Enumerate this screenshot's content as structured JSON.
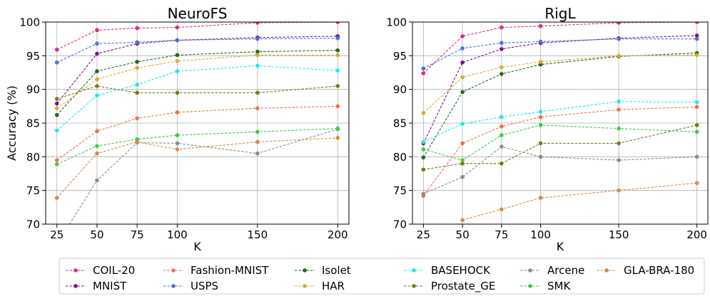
{
  "legend": {
    "placement": "bottom",
    "entries": [
      {
        "name": "COIL-20",
        "color": "#e6258c"
      },
      {
        "name": "MNIST",
        "color": "#7f0f8c"
      },
      {
        "name": "Fashion-MNIST",
        "color": "#f2704d"
      },
      {
        "name": "USPS",
        "color": "#4c6ee0"
      },
      {
        "name": "Isolet",
        "color": "#1e6b1e"
      },
      {
        "name": "HAR",
        "color": "#d9ad2b"
      },
      {
        "name": "BASEHOCK",
        "color": "#1ee8f0"
      },
      {
        "name": "Prostate_GE",
        "color": "#7a7a14"
      },
      {
        "name": "Arcene",
        "color": "#8c8c8c"
      },
      {
        "name": "SMK",
        "color": "#3ccc46"
      },
      {
        "name": "GLA-BRA-180",
        "color": "#d88a48"
      }
    ]
  },
  "chart_data": [
    {
      "type": "line",
      "title": "NeuroFS",
      "xlabel": "K",
      "ylabel": "Accuracy (%)",
      "x": [
        25,
        50,
        75,
        100,
        150,
        200
      ],
      "xlim": [
        18,
        207
      ],
      "ylim": [
        70,
        100
      ],
      "yticks": [
        70,
        75,
        80,
        85,
        90,
        95,
        100
      ],
      "grid": true,
      "series": [
        {
          "name": "COIL-20",
          "values": [
            95.9,
            98.8,
            99.1,
            99.2,
            99.9,
            100.0
          ]
        },
        {
          "name": "MNIST",
          "values": [
            87.9,
            95.3,
            96.8,
            97.3,
            97.7,
            97.9
          ]
        },
        {
          "name": "Fashion-MNIST",
          "values": [
            79.5,
            83.8,
            85.7,
            86.6,
            87.2,
            87.5
          ]
        },
        {
          "name": "USPS",
          "values": [
            94.0,
            96.8,
            97.0,
            97.3,
            97.5,
            97.6
          ]
        },
        {
          "name": "Isolet",
          "values": [
            86.2,
            92.7,
            94.1,
            95.1,
            95.6,
            95.8
          ]
        },
        {
          "name": "HAR",
          "values": [
            87.2,
            91.5,
            93.2,
            94.2,
            95.1,
            95.1
          ]
        },
        {
          "name": "BASEHOCK",
          "values": [
            83.9,
            89.1,
            90.7,
            92.7,
            93.5,
            92.8
          ]
        },
        {
          "name": "Prostate_GE",
          "values": [
            88.6,
            90.5,
            89.5,
            89.5,
            89.5,
            90.5
          ]
        },
        {
          "name": "Arcene",
          "values": [
            67.0,
            76.5,
            82.1,
            82.0,
            80.5,
            84.1
          ]
        },
        {
          "name": "SMK",
          "values": [
            78.9,
            81.6,
            82.6,
            83.2,
            83.7,
            84.2
          ]
        },
        {
          "name": "GLA-BRA-180",
          "values": [
            73.9,
            80.5,
            82.2,
            81.1,
            82.2,
            82.8
          ]
        }
      ]
    },
    {
      "type": "line",
      "title": "RigL",
      "xlabel": "K",
      "ylabel": "",
      "x": [
        25,
        50,
        75,
        100,
        150,
        200
      ],
      "xlim": [
        18,
        207
      ],
      "ylim": [
        70,
        100
      ],
      "yticks": [
        70,
        75,
        80,
        85,
        90,
        95,
        100
      ],
      "grid": true,
      "series": [
        {
          "name": "COIL-20",
          "values": [
            92.4,
            97.9,
            99.2,
            99.4,
            99.9,
            100.0
          ]
        },
        {
          "name": "MNIST",
          "values": [
            82.0,
            94.0,
            96.0,
            96.9,
            97.6,
            98.0
          ]
        },
        {
          "name": "Fashion-MNIST",
          "values": [
            74.2,
            82.0,
            84.5,
            85.9,
            87.0,
            87.4
          ]
        },
        {
          "name": "USPS",
          "values": [
            93.1,
            96.1,
            96.9,
            97.1,
            97.5,
            97.5
          ]
        },
        {
          "name": "Isolet",
          "values": [
            79.9,
            89.6,
            92.3,
            93.7,
            94.9,
            95.4
          ]
        },
        {
          "name": "HAR",
          "values": [
            86.5,
            91.8,
            93.3,
            94.1,
            95.0,
            95.1
          ]
        },
        {
          "name": "BASEHOCK",
          "values": [
            82.2,
            84.9,
            85.9,
            86.7,
            88.2,
            88.1
          ]
        },
        {
          "name": "Prostate_GE",
          "values": [
            78.1,
            79.0,
            79.0,
            82.0,
            82.0,
            84.7
          ]
        },
        {
          "name": "Arcene",
          "values": [
            74.5,
            77.0,
            81.5,
            80.0,
            79.5,
            80.0
          ]
        },
        {
          "name": "SMK",
          "values": [
            81.1,
            79.5,
            83.2,
            84.7,
            84.2,
            83.7
          ]
        },
        {
          "name": "GLA-BRA-180",
          "values": [
            null,
            70.6,
            72.2,
            73.9,
            75.0,
            76.1
          ]
        }
      ]
    }
  ]
}
